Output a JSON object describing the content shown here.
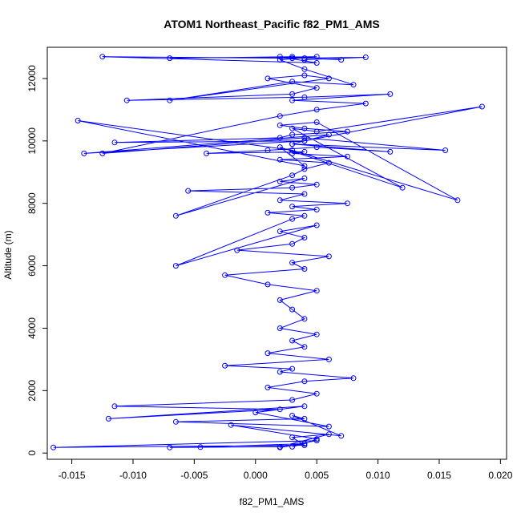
{
  "chart_data": {
    "type": "scatter",
    "title": "ATOM1 Northeast_Pacific f82_PM1_AMS",
    "xlabel": "f82_PM1_AMS",
    "ylabel": "Altitude (m)",
    "xlim": [
      -0.017,
      0.0205
    ],
    "ylim": [
      -200,
      13000
    ],
    "x_ticks": [
      -0.015,
      -0.01,
      -0.005,
      0.0,
      0.005,
      0.01,
      0.015,
      0.02
    ],
    "x_tick_labels": [
      "-0.015",
      "-0.010",
      "-0.005",
      "0.000",
      "0.005",
      "0.010",
      "0.015",
      "0.020"
    ],
    "y_ticks": [
      0,
      2000,
      4000,
      6000,
      8000,
      10000,
      12000
    ],
    "y_tick_labels": [
      "0",
      "2000",
      "4000",
      "6000",
      "8000",
      "10000",
      "12000"
    ],
    "grid": false,
    "legend": "none",
    "series_color": "#0000ff",
    "marker": "open-circle",
    "connected": true,
    "series": [
      {
        "x": [
          0.003,
          0.004,
          0.002,
          0.005,
          -0.0165,
          0.004,
          0.003,
          0.006,
          0.002,
          -0.007,
          -0.0045,
          0.004,
          0.005,
          -0.002,
          0.007,
          0.003,
          0.004,
          -0.0065,
          0.006,
          0.0,
          0.004,
          -0.012,
          0.002,
          -0.0115,
          0.003,
          0.005,
          0.001,
          0.004,
          0.008,
          0.002,
          0.003,
          -0.0025,
          0.006,
          0.001,
          0.004,
          0.003,
          0.005,
          0.002,
          0.004,
          0.003,
          0.002,
          0.005,
          0.001,
          -0.0025,
          0.004,
          0.003,
          0.006,
          -0.0015,
          0.003,
          0.004,
          0.002,
          0.005,
          -0.0065,
          0.003,
          0.004,
          0.001,
          0.005,
          0.003,
          0.0075,
          0.002,
          0.004,
          -0.0055,
          0.003,
          0.005,
          0.002,
          0.004,
          -0.0065,
          0.003,
          0.004,
          0.006,
          0.002,
          0.0075,
          0.003,
          0.004,
          -0.004,
          0.001,
          0.005,
          0.011,
          0.003,
          0.004,
          -0.0115,
          0.002,
          0.003,
          0.0075,
          0.004,
          0.002,
          0.005,
          0.0165,
          0.003,
          -0.0145,
          0.004,
          0.002,
          0.012,
          0.003,
          0.005,
          0.0185,
          0.004,
          -0.014,
          0.006,
          0.003,
          0.0155,
          0.004,
          -0.0125,
          0.002,
          0.005,
          0.009,
          0.003,
          0.011,
          0.004,
          -0.0105,
          0.003,
          0.005,
          0.001,
          0.004,
          0.006,
          -0.007,
          0.003,
          0.008,
          0.004,
          0.002,
          0.005,
          -0.007,
          0.003,
          0.007,
          0.004,
          0.002,
          0.005,
          -0.0125,
          0.003,
          0.009,
          0.004
        ],
        "y": [
          200,
          300,
          180,
          400,
          180,
          250,
          500,
          600,
          200,
          180,
          190,
          300,
          450,
          900,
          550,
          1200,
          1100,
          1000,
          850,
          1300,
          1500,
          1100,
          1400,
          1500,
          1700,
          1900,
          2100,
          2300,
          2400,
          2600,
          2700,
          2800,
          3000,
          3200,
          3400,
          3600,
          3800,
          4000,
          4300,
          4600,
          4900,
          5200,
          5400,
          5700,
          5900,
          6100,
          6300,
          6500,
          6700,
          6900,
          7100,
          7300,
          6000,
          7500,
          7600,
          7700,
          7800,
          7900,
          8000,
          8100,
          8300,
          8400,
          8500,
          8600,
          8700,
          8800,
          7600,
          8900,
          9100,
          9300,
          9400,
          9500,
          9600,
          9650,
          9600,
          9700,
          9800,
          9650,
          9900,
          10000,
          9950,
          10100,
          10200,
          10300,
          10400,
          10500,
          10600,
          8100,
          9700,
          10650,
          9200,
          9800,
          8500,
          10400,
          10300,
          11100,
          10000,
          9600,
          10200,
          9900,
          9700,
          10100,
          9600,
          10800,
          11000,
          11200,
          11300,
          11500,
          11400,
          11300,
          11500,
          11700,
          12000,
          12100,
          12000,
          11300,
          11900,
          11800,
          12300,
          12600,
          12700,
          12650,
          12700,
          12600,
          12650,
          12700,
          12500,
          12700,
          12650,
          12680,
          12600
        ]
      }
    ]
  }
}
